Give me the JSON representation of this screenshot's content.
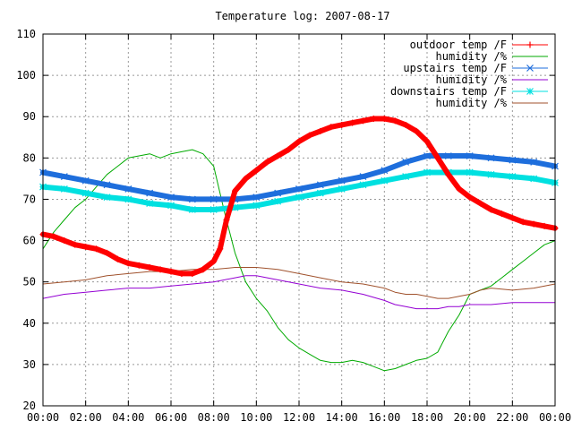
{
  "chart_data": {
    "type": "line",
    "title": "Temperature log: 2007-08-17",
    "xlabel": "",
    "ylabel": "",
    "x_ticks": [
      "00:00",
      "02:00",
      "04:00",
      "06:00",
      "08:00",
      "10:00",
      "12:00",
      "14:00",
      "16:00",
      "18:00",
      "20:00",
      "22:00",
      "00:00"
    ],
    "x_range_hours": [
      0,
      24
    ],
    "y_ticks": [
      20,
      30,
      40,
      50,
      60,
      70,
      80,
      90,
      100,
      110
    ],
    "ylim": [
      20,
      110
    ],
    "grid": true,
    "legend_position": "top-right",
    "series": [
      {
        "name": "outdoor temp /F",
        "color": "#ff0000",
        "style": "linespoints",
        "marker": "plus",
        "x_hours": [
          0,
          0.5,
          1,
          1.5,
          2,
          2.5,
          3,
          3.5,
          4,
          4.5,
          5,
          5.5,
          6,
          6.5,
          7,
          7.5,
          8,
          8.3,
          8.6,
          9,
          9.5,
          10,
          10.5,
          11,
          11.5,
          12,
          12.5,
          13,
          13.5,
          14,
          14.5,
          15,
          15.5,
          16,
          16.5,
          17,
          17.5,
          18,
          18.5,
          19,
          19.5,
          20,
          20.5,
          21,
          21.5,
          22,
          22.5,
          23,
          23.5,
          24
        ],
        "values": [
          61.5,
          61,
          60,
          59,
          58.5,
          58,
          57,
          55.5,
          54.5,
          54,
          53.5,
          53,
          52.5,
          52,
          52,
          53,
          55,
          58,
          65,
          72,
          75,
          77,
          79,
          80.5,
          82,
          84,
          85.5,
          86.5,
          87.5,
          88,
          88.5,
          89,
          89.5,
          89.5,
          89,
          88,
          86.5,
          84,
          80,
          76,
          72.5,
          70.5,
          69,
          67.5,
          66.5,
          65.5,
          64.5,
          64,
          63.5,
          63
        ]
      },
      {
        "name": "humidity /%",
        "color": "#00aa00",
        "style": "lines",
        "x_hours": [
          0,
          0.5,
          1,
          1.5,
          2,
          2.5,
          3,
          3.5,
          4,
          4.5,
          5,
          5.5,
          6,
          6.5,
          7,
          7.5,
          8,
          8.5,
          9,
          9.5,
          10,
          10.5,
          11,
          11.5,
          12,
          12.5,
          13,
          13.5,
          14,
          14.5,
          15,
          15.5,
          16,
          16.5,
          17,
          17.5,
          18,
          18.5,
          19,
          19.5,
          20,
          20.5,
          21,
          21.5,
          22,
          22.5,
          23,
          23.5,
          24
        ],
        "values": [
          58,
          62,
          65,
          68,
          70,
          73,
          76,
          78,
          80,
          80.5,
          81,
          80,
          81,
          81.5,
          82,
          81,
          78,
          67,
          57,
          50,
          46,
          43,
          39,
          36,
          34,
          32.5,
          31,
          30.5,
          30.5,
          31,
          30.5,
          29.5,
          28.5,
          29,
          30,
          31,
          31.5,
          33,
          38,
          42,
          47,
          48,
          49,
          51,
          53,
          55,
          57,
          59,
          60
        ]
      },
      {
        "name": "upstairs temp /F",
        "color": "#1e6edc",
        "style": "linespoints",
        "marker": "cross",
        "x_hours": [
          0,
          1,
          2,
          3,
          4,
          5,
          6,
          7,
          8,
          9,
          10,
          11,
          12,
          13,
          14,
          15,
          16,
          17,
          18,
          19,
          20,
          21,
          22,
          23,
          24
        ],
        "values": [
          76.5,
          75.5,
          74.5,
          73.5,
          72.5,
          71.5,
          70.5,
          70,
          70,
          70,
          70.5,
          71.5,
          72.5,
          73.5,
          74.5,
          75.5,
          77,
          79,
          80.5,
          80.5,
          80.5,
          80,
          79.5,
          79,
          78
        ]
      },
      {
        "name": "humidity /%",
        "color": "#9400d3",
        "style": "lines",
        "x_hours": [
          0,
          1,
          2,
          3,
          4,
          5,
          6,
          7,
          8,
          9,
          9.5,
          10,
          11,
          12,
          13,
          14,
          15,
          16,
          16.5,
          17,
          17.5,
          18,
          18.5,
          19,
          19.5,
          20,
          21,
          22,
          23,
          24
        ],
        "values": [
          46,
          47,
          47.5,
          48,
          48.5,
          48.5,
          49,
          49.5,
          50,
          51,
          51.5,
          51.5,
          50.5,
          49.5,
          48.5,
          48,
          47,
          45.5,
          44.5,
          44,
          43.5,
          43.5,
          43.5,
          44,
          44,
          44.5,
          44.5,
          45,
          45,
          45
        ]
      },
      {
        "name": "downstairs temp /F",
        "color": "#00e0e0",
        "style": "linespoints",
        "marker": "star",
        "x_hours": [
          0,
          1,
          2,
          3,
          4,
          5,
          6,
          7,
          8,
          9,
          10,
          11,
          12,
          13,
          14,
          15,
          16,
          17,
          18,
          19,
          20,
          21,
          22,
          23,
          24
        ],
        "values": [
          73,
          72.5,
          71.5,
          70.5,
          70,
          69,
          68.5,
          67.5,
          67.5,
          68,
          68.5,
          69.5,
          70.5,
          71.5,
          72.5,
          73.5,
          74.5,
          75.5,
          76.5,
          76.5,
          76.5,
          76,
          75.5,
          75,
          74
        ]
      },
      {
        "name": "humidity /%",
        "color": "#a0522d",
        "style": "lines",
        "x_hours": [
          0,
          1,
          2,
          3,
          4,
          5,
          6,
          7,
          8,
          9,
          10,
          11,
          12,
          13,
          14,
          15,
          16,
          16.5,
          17,
          17.5,
          18,
          18.5,
          19,
          19.5,
          20,
          20.5,
          21,
          22,
          23,
          24
        ],
        "values": [
          49.5,
          50,
          50.5,
          51.5,
          52,
          52.5,
          52.5,
          53,
          53,
          53.5,
          53.5,
          53,
          52,
          51,
          50,
          49.5,
          48.5,
          47.5,
          47,
          47,
          46.5,
          46,
          46,
          46.5,
          47,
          48,
          48.5,
          48,
          48.5,
          49.5
        ]
      }
    ]
  }
}
